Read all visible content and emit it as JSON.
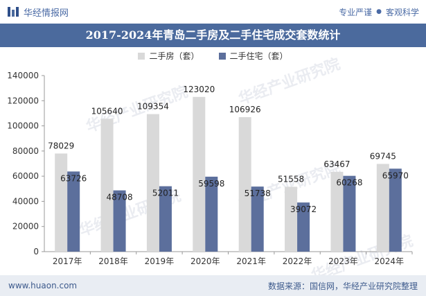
{
  "header": {
    "brand": "华经情报网",
    "tagline_left": "专业严谨",
    "tagline_right": "客观科学",
    "dot": "●"
  },
  "watermark": "华经产业研究院",
  "footer": {
    "url": "www.huaon.com",
    "source": "数据来源：国信网，华经产业研究院整理"
  },
  "colors": {
    "series1": "#d9d9d9",
    "series2": "#5c6f9c",
    "title_bg": "#4b6a9d"
  },
  "chart_data": {
    "type": "bar",
    "title": "2017-2024年青岛二手房及二手住宅成交套数统计",
    "categories": [
      "2017年",
      "2018年",
      "2019年",
      "2020年",
      "2021年",
      "2022年",
      "2023年",
      "2024年"
    ],
    "series": [
      {
        "name": "二手房（套）",
        "values": [
          78029,
          105640,
          109354,
          123020,
          106926,
          51558,
          63467,
          69745
        ]
      },
      {
        "name": "二手住宅（套）",
        "values": [
          63726,
          48708,
          52011,
          59598,
          51738,
          39072,
          60268,
          65970
        ]
      }
    ],
    "ylim": [
      0,
      140000
    ],
    "yticks": [
      0,
      20000,
      40000,
      60000,
      80000,
      100000,
      120000,
      140000
    ],
    "legend": "top",
    "grid": false
  }
}
